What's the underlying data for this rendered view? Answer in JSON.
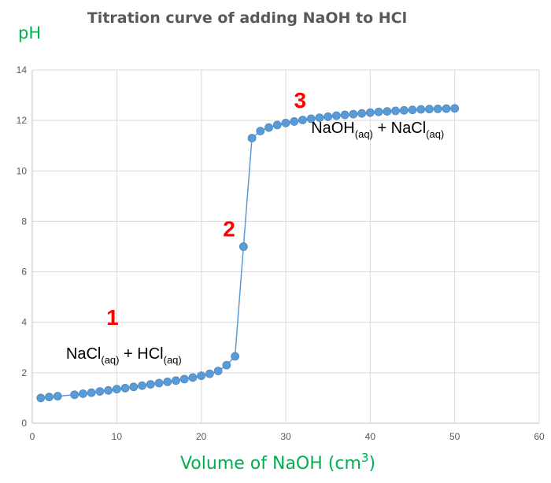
{
  "chart_data": {
    "type": "line",
    "title": "Titration curve of adding NaOH to HCl",
    "ylabel": "pH",
    "xlabel": "Volume of NaOH (cm",
    "xlabel_sup": "3",
    "xlabel_end": ")",
    "xlim": [
      0,
      60
    ],
    "ylim": [
      0,
      14
    ],
    "xticks": [
      0,
      10,
      20,
      30,
      40,
      50,
      60
    ],
    "yticks": [
      0,
      2,
      4,
      6,
      8,
      10,
      12,
      14
    ],
    "grid": true,
    "legend": "none",
    "series": [
      {
        "color": "#5b9bd5",
        "x": [
          1,
          2,
          3,
          5,
          6,
          7,
          8,
          9,
          10,
          11,
          12,
          13,
          14,
          15,
          16,
          17,
          18,
          19,
          20,
          21,
          22,
          23,
          24,
          25,
          26,
          27,
          28,
          29,
          30,
          31,
          32,
          33,
          34,
          35,
          36,
          37,
          38,
          39,
          40,
          41,
          42,
          43,
          44,
          45,
          46,
          47,
          48,
          49,
          50
        ],
        "y": [
          1.0,
          1.04,
          1.07,
          1.13,
          1.17,
          1.21,
          1.26,
          1.3,
          1.35,
          1.39,
          1.44,
          1.49,
          1.54,
          1.59,
          1.64,
          1.69,
          1.75,
          1.81,
          1.88,
          1.96,
          2.07,
          2.3,
          2.65,
          7.0,
          11.3,
          11.58,
          11.72,
          11.82,
          11.9,
          11.96,
          12.02,
          12.07,
          12.11,
          12.15,
          12.19,
          12.22,
          12.25,
          12.28,
          12.31,
          12.34,
          12.36,
          12.38,
          12.4,
          12.42,
          12.44,
          12.45,
          12.46,
          12.47,
          12.48
        ]
      }
    ],
    "annotations": [
      {
        "text": "1",
        "x": 9.5,
        "y": 3.9
      },
      {
        "text": "2",
        "x": 23.3,
        "y": 7.4
      },
      {
        "text": "3",
        "x": 31.7,
        "y": 12.5
      }
    ],
    "labels": [
      {
        "x": 4,
        "y": 2.55,
        "parts": [
          {
            "text": "NaCl"
          },
          {
            "text": "(aq)",
            "sub": true
          },
          {
            "text": " + HCl"
          },
          {
            "text": "(aq)",
            "sub": true
          }
        ]
      },
      {
        "x": 33,
        "y": 11.5,
        "parts": [
          {
            "text": "NaOH"
          },
          {
            "text": "(aq)",
            "sub": true
          },
          {
            "text": " +  NaCl"
          },
          {
            "text": "(aq)",
            "sub": true
          }
        ]
      }
    ]
  }
}
